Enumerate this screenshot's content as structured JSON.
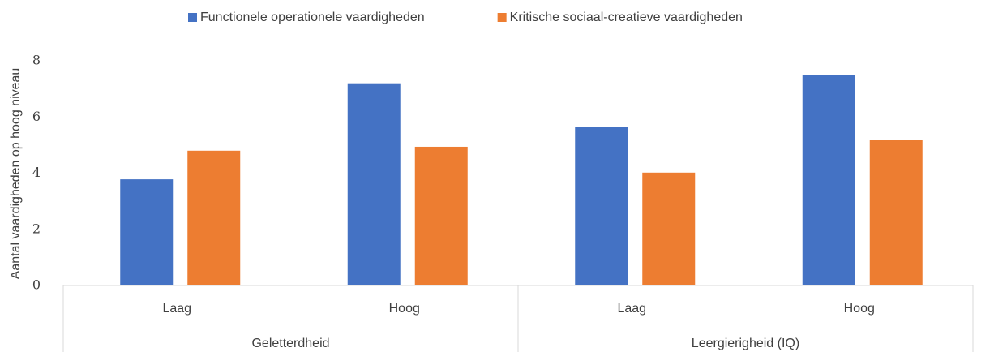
{
  "chart_data": {
    "type": "bar",
    "y_label": "Aantal vaardigheden op hoog niveau",
    "categories": [
      "Laag",
      "Hoog",
      "Laag",
      "Hoog"
    ],
    "groups": [
      "Geletterdheid",
      "Leergierigheid (IQ)"
    ],
    "series": [
      {
        "name": "Functionele operationele vaardigheden",
        "color": "#4472c4",
        "values": [
          3.78,
          7.2,
          5.66,
          7.48
        ]
      },
      {
        "name": "Kritische sociaal-creatieve vaardigheden",
        "color": "#ed7d31",
        "values": [
          4.8,
          4.94,
          4.02,
          5.17
        ]
      }
    ],
    "ylim": [
      0,
      8
    ],
    "yticks": [
      0,
      2,
      4,
      6,
      8
    ],
    "grid": false,
    "legend": "top"
  }
}
